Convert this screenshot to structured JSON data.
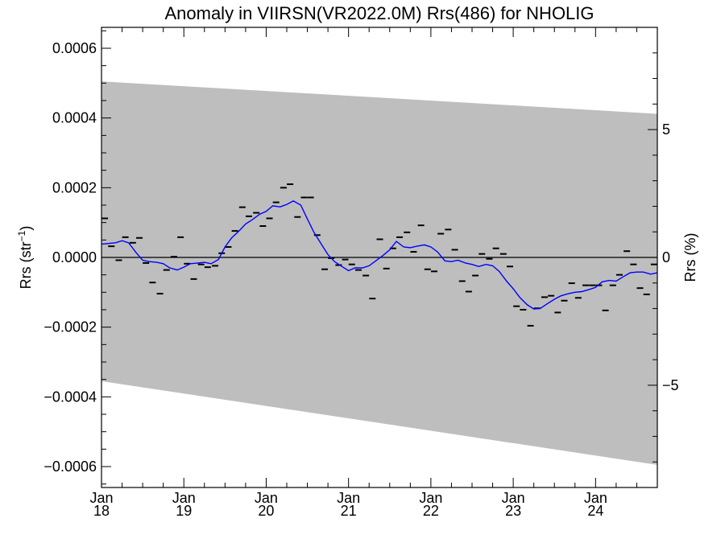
{
  "chart_data": {
    "type": "line",
    "title": "Anomaly in VIIRSN(VR2022.0M) Rrs(486) for NHOLIG",
    "ylabel_left": "Rrs (str",
    "ylabel_left_sup": "−1",
    "ylabel_left_close": ")",
    "ylabel_right": "Rrs (%)",
    "x_range": [
      2018.0,
      2024.75
    ],
    "ylim_left": [
      -0.00066,
      0.00066
    ],
    "ylim_right": [
      -9.0,
      9.0
    ],
    "y_ticks_left": [
      {
        "value": 0.0006,
        "label": "0.0006"
      },
      {
        "value": 0.0004,
        "label": "0.0004"
      },
      {
        "value": 0.0002,
        "label": "0.0002"
      },
      {
        "value": 0.0,
        "label": "0.0000"
      },
      {
        "value": -0.0002,
        "label": "−0.0002"
      },
      {
        "value": -0.0004,
        "label": "−0.0004"
      },
      {
        "value": -0.0006,
        "label": "−0.0006"
      }
    ],
    "y_ticks_right": [
      {
        "value": 5,
        "label": "5"
      },
      {
        "value": 0,
        "label": "0"
      },
      {
        "value": -5,
        "label": "−5"
      }
    ],
    "x_ticks": [
      {
        "value": 2018.0,
        "month": "Jan",
        "year": "18"
      },
      {
        "value": 2019.0,
        "month": "Jan",
        "year": "19"
      },
      {
        "value": 2020.0,
        "month": "Jan",
        "year": "20"
      },
      {
        "value": 2021.0,
        "month": "Jan",
        "year": "21"
      },
      {
        "value": 2022.0,
        "month": "Jan",
        "year": "22"
      },
      {
        "value": 2023.0,
        "month": "Jan",
        "year": "23"
      },
      {
        "value": 2024.0,
        "month": "Jan",
        "year": "24"
      }
    ],
    "uncertainty_band": {
      "upper": [
        [
          2018.0,
          0.000505
        ],
        [
          2024.75,
          0.000412
        ]
      ],
      "lower": [
        [
          2018.0,
          -0.000355
        ],
        [
          2024.75,
          -0.000595
        ]
      ],
      "color": "#bebebe"
    },
    "series": [
      {
        "role": "monthly",
        "color": "#000000",
        "points": [
          [
            2018.04,
            0.000112
          ],
          [
            2018.12,
            3.2e-05
          ],
          [
            2018.21,
            -8e-06
          ],
          [
            2018.29,
            5.8e-05
          ],
          [
            2018.38,
            4.2e-05
          ],
          [
            2018.46,
            5.6e-05
          ],
          [
            2018.54,
            -1.6e-05
          ],
          [
            2018.62,
            -7.2e-05
          ],
          [
            2018.71,
            -0.000104
          ],
          [
            2018.79,
            -3.6e-05
          ],
          [
            2018.88,
            2e-06
          ],
          [
            2018.96,
            5.8e-05
          ],
          [
            2019.04,
            -1.8e-05
          ],
          [
            2019.12,
            -6.2e-05
          ],
          [
            2019.21,
            -2e-05
          ],
          [
            2019.29,
            -2.8e-05
          ],
          [
            2019.38,
            -2.4e-05
          ],
          [
            2019.46,
            1.2e-05
          ],
          [
            2019.54,
            3e-05
          ],
          [
            2019.62,
            7.6e-05
          ],
          [
            2019.71,
            0.000144
          ],
          [
            2019.79,
            0.000118
          ],
          [
            2019.88,
            0.000128
          ],
          [
            2019.96,
            9e-05
          ],
          [
            2020.04,
            0.000112
          ],
          [
            2020.12,
            0.000158
          ],
          [
            2020.21,
            0.0002
          ],
          [
            2020.29,
            0.00021
          ],
          [
            2020.38,
            0.000116
          ],
          [
            2020.46,
            0.000172
          ],
          [
            2020.54,
            0.000172
          ],
          [
            2020.62,
            6.4e-05
          ],
          [
            2020.71,
            -3.4e-05
          ],
          [
            2020.79,
            -2e-06
          ],
          [
            2020.88,
            -2.2e-05
          ],
          [
            2020.96,
            -6e-06
          ],
          [
            2021.04,
            -2e-05
          ],
          [
            2021.12,
            -3.6e-05
          ],
          [
            2021.21,
            -5.2e-05
          ],
          [
            2021.29,
            -0.000118
          ],
          [
            2021.38,
            5.2e-05
          ],
          [
            2021.46,
            -3.2e-05
          ],
          [
            2021.54,
            2.6e-05
          ],
          [
            2021.62,
            5.8e-05
          ],
          [
            2021.71,
            7.2e-05
          ],
          [
            2021.79,
            1.6e-05
          ],
          [
            2021.88,
            9.2e-05
          ],
          [
            2021.96,
            -3.4e-05
          ],
          [
            2022.04,
            -4e-05
          ],
          [
            2022.12,
            6.8e-05
          ],
          [
            2022.21,
            8e-05
          ],
          [
            2022.29,
            2.2e-05
          ],
          [
            2022.38,
            -6.8e-05
          ],
          [
            2022.46,
            -9.8e-05
          ],
          [
            2022.54,
            -5.2e-05
          ],
          [
            2022.62,
            1e-05
          ],
          [
            2022.71,
            -4e-06
          ],
          [
            2022.79,
            2.6e-05
          ],
          [
            2022.88,
            1e-05
          ],
          [
            2022.96,
            -2.6e-05
          ],
          [
            2023.04,
            -0.00014
          ],
          [
            2023.12,
            -0.00015
          ],
          [
            2023.21,
            -0.000196
          ],
          [
            2023.29,
            -0.000146
          ],
          [
            2023.38,
            -0.000114
          ],
          [
            2023.46,
            -0.00011
          ],
          [
            2023.54,
            -0.000158
          ],
          [
            2023.62,
            -0.000124
          ],
          [
            2023.71,
            -7.4e-05
          ],
          [
            2023.79,
            -0.000116
          ],
          [
            2023.88,
            -8e-05
          ],
          [
            2023.96,
            -8e-05
          ],
          [
            2024.04,
            -8e-05
          ],
          [
            2024.12,
            -0.000152
          ],
          [
            2024.21,
            -8e-05
          ],
          [
            2024.29,
            -5e-05
          ],
          [
            2024.38,
            1.8e-05
          ],
          [
            2024.46,
            -2e-05
          ],
          [
            2024.54,
            -8.8e-05
          ],
          [
            2024.62,
            -0.000106
          ],
          [
            2024.71,
            -2e-05
          ]
        ]
      },
      {
        "role": "running-mean",
        "color": "#0000ff",
        "points": [
          [
            2018.0,
            3.8e-05
          ],
          [
            2018.08,
            4e-05
          ],
          [
            2018.17,
            4.2e-05
          ],
          [
            2018.25,
            4.8e-05
          ],
          [
            2018.33,
            4.2e-05
          ],
          [
            2018.42,
            1.4e-05
          ],
          [
            2018.5,
            -8e-06
          ],
          [
            2018.58,
            -1.2e-05
          ],
          [
            2018.67,
            -1.4e-05
          ],
          [
            2018.75,
            -1.8e-05
          ],
          [
            2018.83,
            -3e-05
          ],
          [
            2018.92,
            -3.6e-05
          ],
          [
            2019.0,
            -2.8e-05
          ],
          [
            2019.08,
            -1.8e-05
          ],
          [
            2019.17,
            -1.6e-05
          ],
          [
            2019.25,
            -1.4e-05
          ],
          [
            2019.33,
            -1.8e-05
          ],
          [
            2019.42,
            -6e-06
          ],
          [
            2019.5,
            3e-05
          ],
          [
            2019.58,
            5.6e-05
          ],
          [
            2019.67,
            7.6e-05
          ],
          [
            2019.75,
            9.6e-05
          ],
          [
            2019.83,
            0.000108
          ],
          [
            2019.92,
            0.000124
          ],
          [
            2020.0,
            0.000132
          ],
          [
            2020.08,
            0.000148
          ],
          [
            2020.17,
            0.000145
          ],
          [
            2020.25,
            0.000152
          ],
          [
            2020.33,
            0.000162
          ],
          [
            2020.42,
            0.00015
          ],
          [
            2020.5,
            0.00011
          ],
          [
            2020.58,
            7.2e-05
          ],
          [
            2020.67,
            3.8e-05
          ],
          [
            2020.75,
            8e-06
          ],
          [
            2020.83,
            -1.2e-05
          ],
          [
            2020.92,
            -2.6e-05
          ],
          [
            2021.0,
            -3.8e-05
          ],
          [
            2021.08,
            -3e-05
          ],
          [
            2021.17,
            -3e-05
          ],
          [
            2021.25,
            -2.4e-05
          ],
          [
            2021.33,
            -1e-05
          ],
          [
            2021.42,
            6e-06
          ],
          [
            2021.5,
            2.2e-05
          ],
          [
            2021.58,
            4.6e-05
          ],
          [
            2021.67,
            3e-05
          ],
          [
            2021.75,
            2.8e-05
          ],
          [
            2021.83,
            3.2e-05
          ],
          [
            2021.92,
            3.6e-05
          ],
          [
            2022.0,
            3e-05
          ],
          [
            2022.08,
            1.6e-05
          ],
          [
            2022.17,
            -1e-05
          ],
          [
            2022.25,
            -1.2e-05
          ],
          [
            2022.33,
            -8e-06
          ],
          [
            2022.42,
            -1.6e-05
          ],
          [
            2022.5,
            -2e-05
          ],
          [
            2022.58,
            -2.6e-05
          ],
          [
            2022.67,
            -2e-05
          ],
          [
            2022.75,
            -2.4e-05
          ],
          [
            2022.83,
            -4e-05
          ],
          [
            2022.92,
            -6.8e-05
          ],
          [
            2023.0,
            -9e-05
          ],
          [
            2023.08,
            -0.000115
          ],
          [
            2023.17,
            -0.000136
          ],
          [
            2023.25,
            -0.000148
          ],
          [
            2023.33,
            -0.000146
          ],
          [
            2023.42,
            -0.000132
          ],
          [
            2023.5,
            -0.00012
          ],
          [
            2023.58,
            -0.00011
          ],
          [
            2023.67,
            -0.000104
          ],
          [
            2023.75,
            -0.0001
          ],
          [
            2023.83,
            -9.8e-05
          ],
          [
            2023.92,
            -9.2e-05
          ],
          [
            2024.0,
            -8.6e-05
          ],
          [
            2024.08,
            -7e-05
          ],
          [
            2024.17,
            -6.6e-05
          ],
          [
            2024.25,
            -6.8e-05
          ],
          [
            2024.33,
            -5.6e-05
          ],
          [
            2024.42,
            -4.4e-05
          ],
          [
            2024.5,
            -4.2e-05
          ],
          [
            2024.58,
            -4.2e-05
          ],
          [
            2024.67,
            -4.8e-05
          ],
          [
            2024.75,
            -4.4e-05
          ]
        ]
      }
    ],
    "zero_line": true,
    "grid": false
  }
}
